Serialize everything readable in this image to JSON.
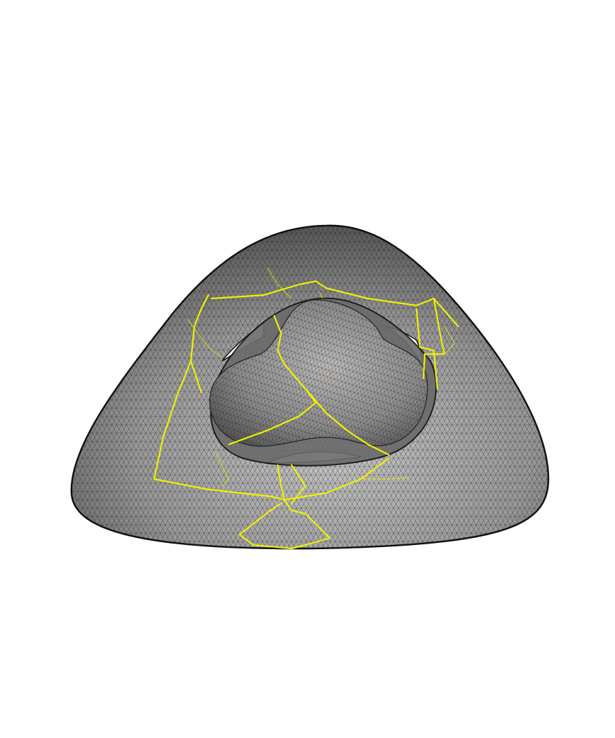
{
  "scene": {
    "background_color": "#ffffff",
    "surface_color": "#8c8c8c",
    "surface_light_color": "#bdbdbd",
    "surface_dark_color": "#3a3a3a",
    "mesh_line_color": "#1a1a1a",
    "outline_color": "#111111",
    "seam_color": "#f0f000",
    "marker_color": "#e07a2a"
  }
}
